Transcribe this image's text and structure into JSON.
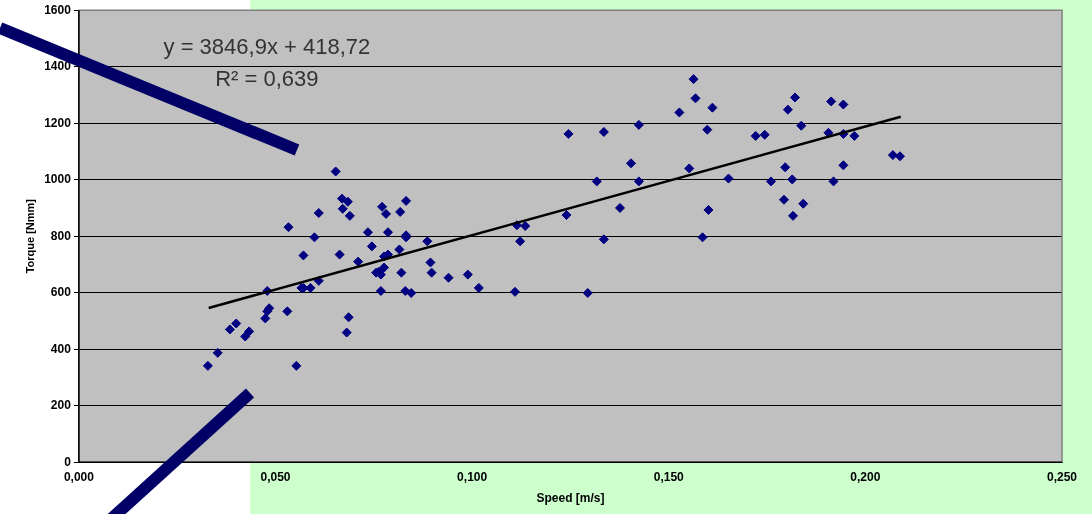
{
  "chart_data": {
    "type": "scatter",
    "xlabel": "Speed [m/s]",
    "ylabel": "Torque [Nmm]",
    "annotations": [
      "y = 3846,9x + 418,72",
      "R² = 0,639"
    ],
    "xlim": [
      0,
      0.25
    ],
    "xticks": [
      {
        "value": 0,
        "label": "0,000"
      },
      {
        "value": 0.05,
        "label": "0,050"
      },
      {
        "value": 0.1,
        "label": "0,100"
      },
      {
        "value": 0.15,
        "label": "0,150"
      },
      {
        "value": 0.2,
        "label": "0,200"
      },
      {
        "value": 0.25,
        "label": "0,250"
      }
    ],
    "ylim": [
      0,
      1600
    ],
    "yticks": [
      0,
      200,
      400,
      600,
      800,
      1000,
      1200,
      1400,
      1600
    ],
    "grid": "y",
    "legend": false,
    "series": [
      {
        "color": "#000080",
        "marker": "diamond",
        "x": [
          0.0328,
          0.0353,
          0.0384,
          0.04,
          0.0423,
          0.0433,
          0.0474,
          0.0479,
          0.0484,
          0.053,
          0.0479,
          0.0533,
          0.0553,
          0.0571,
          0.0599,
          0.061,
          0.0653,
          0.0669,
          0.0684,
          0.0671,
          0.0689,
          0.0663,
          0.0686,
          0.0681,
          0.071,
          0.0735,
          0.0745,
          0.061,
          0.0566,
          0.0571,
          0.0589,
          0.0771,
          0.0781,
          0.0786,
          0.0776,
          0.0786,
          0.0756,
          0.0768,
          0.0776,
          0.0763,
          0.0768,
          0.0817,
          0.0832,
          0.0832,
          0.0832,
          0.0815,
          0.082,
          0.083,
          0.0845,
          0.0886,
          0.0894,
          0.0897,
          0.094,
          0.0989,
          0.1017,
          0.1109,
          0.1294,
          0.1114,
          0.1135,
          0.1122,
          0.124,
          0.1245,
          0.1335,
          0.1317,
          0.1335,
          0.1376,
          0.1404,
          0.1424,
          0.1424,
          0.1527,
          0.1563,
          0.1568,
          0.1611,
          0.1598,
          0.1552,
          0.1601,
          0.1586,
          0.1652,
          0.1721,
          0.1744,
          0.1821,
          0.1803,
          0.1837,
          0.1796,
          0.176,
          0.1814,
          0.1793,
          0.1842,
          0.1816,
          0.1913,
          0.1944,
          0.1906,
          0.1944,
          0.1972,
          0.1944,
          0.1919,
          0.207,
          0.2088
        ],
        "values": [
          341,
          387,
          470,
          491,
          445,
          463,
          509,
          534,
          545,
          534,
          606,
          832,
          341,
          732,
          796,
          882,
          1029,
          933,
          922,
          897,
          872,
          735,
          513,
          459,
          710,
          814,
          764,
          642,
          617,
          617,
          617,
          904,
          879,
          814,
          728,
          735,
          671,
          664,
          689,
          674,
          606,
          886,
          925,
          803,
          796,
          753,
          671,
          606,
          599,
          782,
          707,
          671,
          653,
          664,
          617,
          603,
          599,
          839,
          836,
          782,
          875,
          1162,
          1169,
          994,
          789,
          900,
          1058,
          1194,
          994,
          1238,
          1356,
          1288,
          1255,
          1177,
          1040,
          893,
          796,
          1004,
          1155,
          1159,
          1291,
          1248,
          1191,
          1044,
          994,
          1001,
          929,
          915,
          872,
          1277,
          1266,
          1166,
          1162,
          1155,
          1051,
          994,
          1087,
          1083
        ]
      },
      {
        "type": "line",
        "color": "#000000",
        "marker": "none",
        "x": [
          0.033,
          0.209
        ],
        "values": [
          546,
          1223
        ]
      }
    ]
  }
}
